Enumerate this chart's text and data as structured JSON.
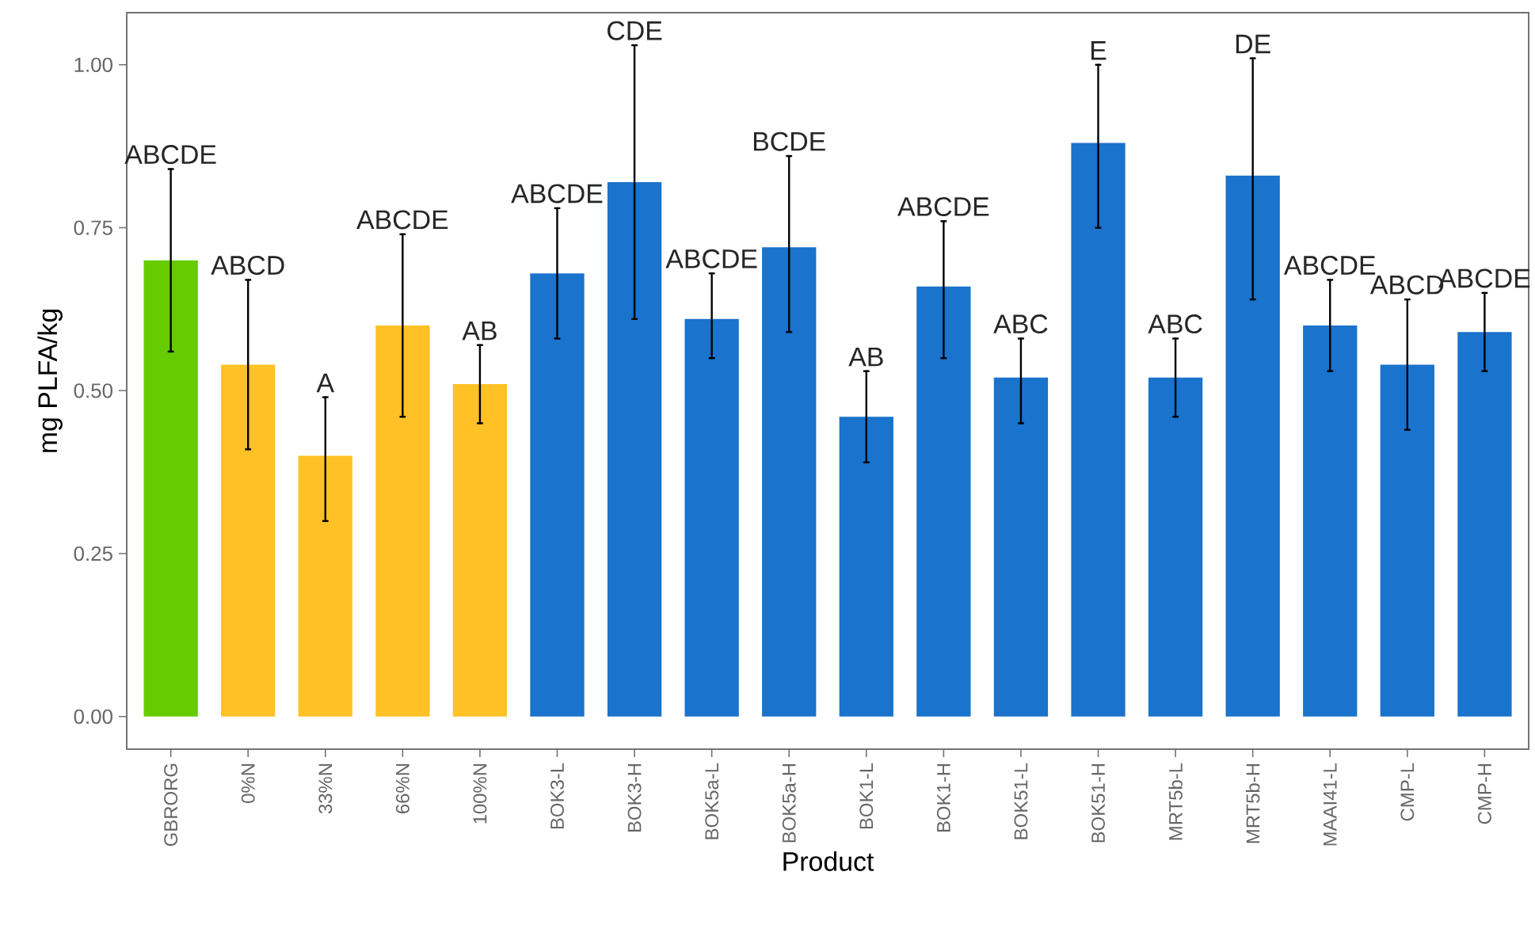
{
  "chart_data": {
    "type": "bar",
    "xlabel": "Product",
    "ylabel": "mg PLFA/kg",
    "categories": [
      "GBRORG",
      "0%N",
      "33%N",
      "66%N",
      "100%N",
      "BOK3-L",
      "BOK3-H",
      "BOK5a-L",
      "BOK5a-H",
      "BOK1-L",
      "BOK1-H",
      "BOK51-L",
      "BOK51-H",
      "MRT5b-L",
      "MRT5b-H",
      "MAAI41-L",
      "CMP-L",
      "CMP-H"
    ],
    "values": [
      0.7,
      0.54,
      0.4,
      0.6,
      0.51,
      0.68,
      0.82,
      0.61,
      0.72,
      0.46,
      0.66,
      0.52,
      0.88,
      0.52,
      0.83,
      0.6,
      0.54,
      0.59
    ],
    "errors": [
      [
        0.56,
        0.84
      ],
      [
        0.41,
        0.67
      ],
      [
        0.3,
        0.49
      ],
      [
        0.46,
        0.74
      ],
      [
        0.45,
        0.57
      ],
      [
        0.58,
        0.78
      ],
      [
        0.61,
        1.03
      ],
      [
        0.55,
        0.68
      ],
      [
        0.59,
        0.86
      ],
      [
        0.39,
        0.53
      ],
      [
        0.55,
        0.76
      ],
      [
        0.45,
        0.58
      ],
      [
        0.75,
        1.0
      ],
      [
        0.46,
        0.58
      ],
      [
        0.64,
        1.01
      ],
      [
        0.53,
        0.67
      ],
      [
        0.44,
        0.64
      ],
      [
        0.53,
        0.65
      ]
    ],
    "colors": [
      "#66cc00",
      "#ffc125",
      "#ffc125",
      "#ffc125",
      "#ffc125",
      "#1a73cc",
      "#1a73cc",
      "#1a73cc",
      "#1a73cc",
      "#1a73cc",
      "#1a73cc",
      "#1a73cc",
      "#1a73cc",
      "#1a73cc",
      "#1a73cc",
      "#1a73cc",
      "#1a73cc",
      "#1a73cc"
    ],
    "ylim": [
      -0.05,
      1.08
    ],
    "yticks": [
      {
        "value": 0,
        "label": "0.00"
      },
      {
        "value": 0.25,
        "label": "0.25"
      },
      {
        "value": 0.5,
        "label": "0.50"
      },
      {
        "value": 0.75,
        "label": "0.75"
      },
      {
        "value": 1.0,
        "label": "1.00"
      }
    ],
    "grid": false,
    "annotations": [
      "ABCDE",
      "ABCD",
      "A",
      "ABCDE",
      "AB",
      "ABCDE",
      "CDE",
      "ABCDE",
      "BCDE",
      "AB",
      "ABCDE",
      "ABC",
      "E",
      "ABC",
      "DE",
      "ABCDE",
      "ABCD",
      "ABCDE"
    ]
  }
}
